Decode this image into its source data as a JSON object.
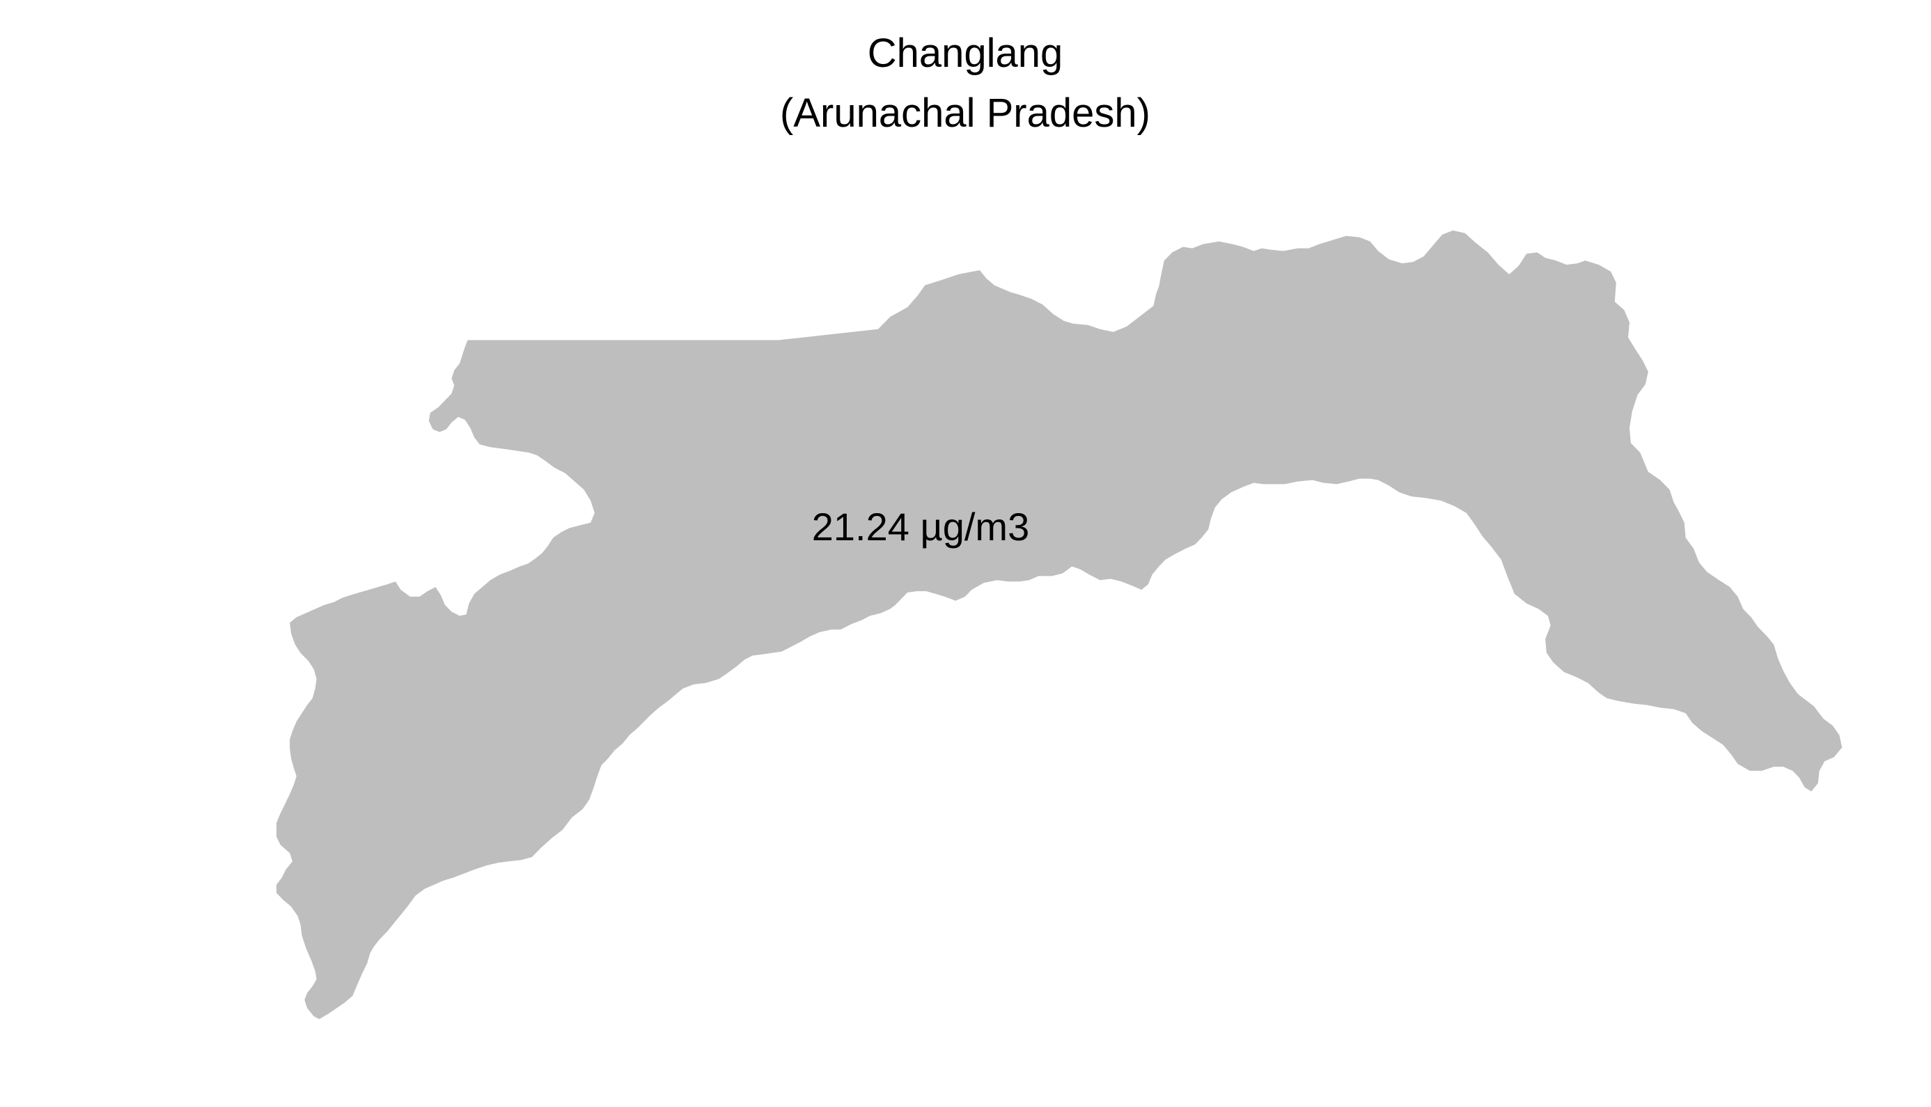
{
  "map": {
    "title": "Changlang",
    "subtitle": "(Arunachal Pradesh)",
    "region_value_label": "21.24 µg/m3",
    "region_fill": "#bebebe",
    "background": "#ffffff"
  }
}
